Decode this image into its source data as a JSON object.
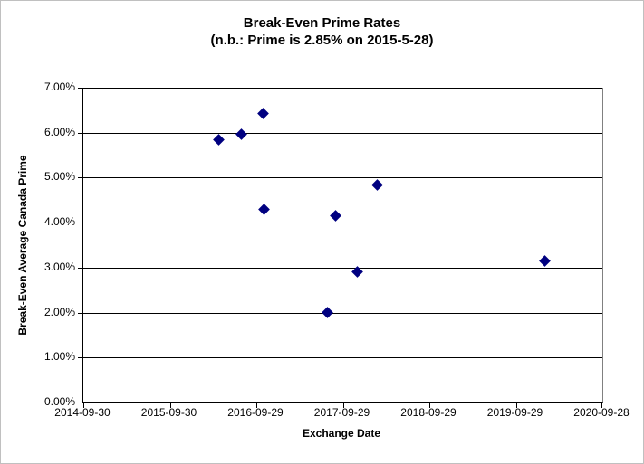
{
  "header": {
    "title": "Break-Even Prime Rates",
    "subtitle": "(n.b.: Prime is 2.85% on 2015-5-28)"
  },
  "chart_data": {
    "type": "scatter",
    "title": "Break-Even Prime Rates",
    "subtitle": "(n.b.: Prime is 2.85% on 2015-5-28)",
    "xlabel": "Exchange Date",
    "ylabel": "Break-Even Average Canada Prime",
    "x_tick_labels": [
      "2014-09-30",
      "2015-09-30",
      "2016-09-29",
      "2017-09-29",
      "2018-09-29",
      "2019-09-29",
      "2020-09-28"
    ],
    "x_range_years": [
      0,
      6
    ],
    "ylim": [
      0,
      7
    ],
    "y_ticks": [
      "0.00%",
      "1.00%",
      "2.00%",
      "3.00%",
      "4.00%",
      "5.00%",
      "6.00%",
      "7.00%"
    ],
    "grid": "horizontal-only",
    "legend": "none",
    "marker": "diamond",
    "marker_color": "#000080",
    "points": [
      {
        "date_est": "2016-04-22",
        "x_years": 1.562,
        "y_pct": 5.85
      },
      {
        "date_est": "2016-07-30",
        "x_years": 1.831,
        "y_pct": 5.97
      },
      {
        "date_est": "2016-10-28",
        "x_years": 2.079,
        "y_pct": 6.43
      },
      {
        "date_est": "2016-11-02",
        "x_years": 2.093,
        "y_pct": 4.3
      },
      {
        "date_est": "2017-07-28",
        "x_years": 2.826,
        "y_pct": 2.0
      },
      {
        "date_est": "2017-09-01",
        "x_years": 2.92,
        "y_pct": 4.15
      },
      {
        "date_est": "2017-11-30",
        "x_years": 3.168,
        "y_pct": 2.91
      },
      {
        "date_est": "2018-02-21",
        "x_years": 3.394,
        "y_pct": 4.84
      },
      {
        "date_est": "2020-01-29",
        "x_years": 5.33,
        "y_pct": 3.15
      }
    ]
  }
}
